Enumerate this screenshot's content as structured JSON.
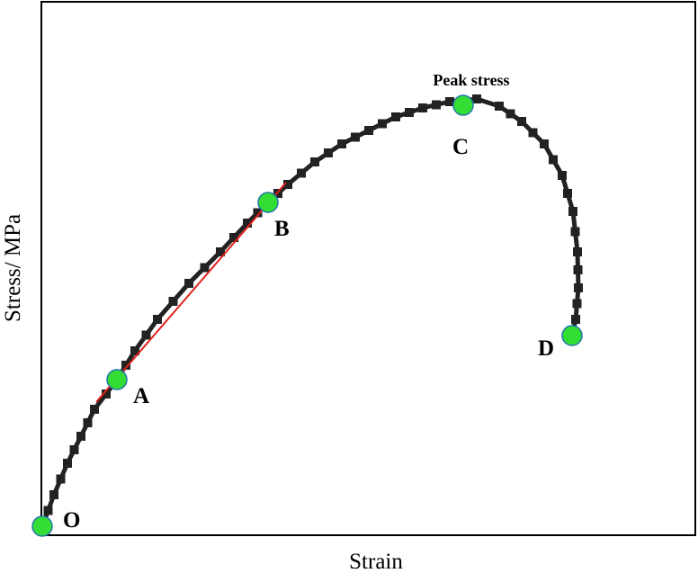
{
  "axes": {
    "x_label": "Strain",
    "y_label": "Stress/ MPa"
  },
  "annotation": "Peak stress",
  "points": [
    "O",
    "A",
    "B",
    "C",
    "D"
  ]
}
